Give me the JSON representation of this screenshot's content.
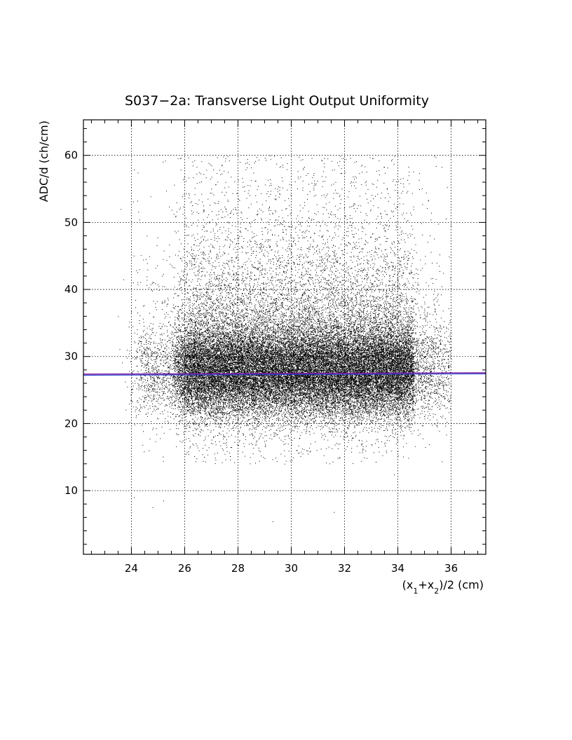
{
  "chart_data": {
    "type": "scatter",
    "title": "S037−2a: Transverse Light Output Uniformity",
    "xlabel": "(x",
    "xlabel_parts": [
      "(x",
      "1",
      "+x",
      "2",
      ")/2 (cm)"
    ],
    "ylabel": "ADC/d (ch/cm)",
    "xlim": [
      22.2,
      37.3
    ],
    "ylim": [
      0.5,
      65.3
    ],
    "x_ticks": [
      24,
      26,
      28,
      30,
      32,
      34,
      36
    ],
    "x_tick_labels": [
      "24",
      "26",
      "28",
      "30",
      "32",
      "34",
      "36"
    ],
    "y_ticks": [
      10,
      20,
      30,
      40,
      50,
      60
    ],
    "y_tick_labels": [
      "10",
      "20",
      "30",
      "40",
      "50",
      "60"
    ],
    "grid": true,
    "point_color": "#000000",
    "fit_line": {
      "x": [
        22.2,
        37.3
      ],
      "y": [
        27.3,
        27.5
      ],
      "colors": [
        "#7a1fa2",
        "#1a3ad0"
      ]
    },
    "distribution": {
      "x_range": [
        23.5,
        36.0
      ],
      "dense_band_y": [
        20,
        35
      ],
      "center_y": 27.5,
      "max_y": 60
    }
  }
}
